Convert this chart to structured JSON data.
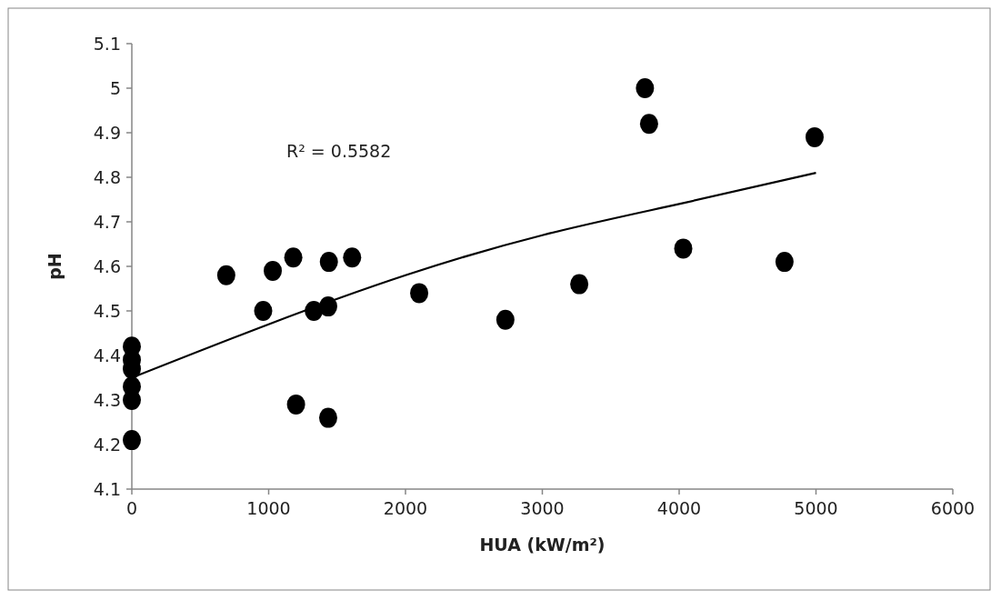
{
  "chart_data": {
    "type": "scatter",
    "xlabel": "HUA (kW/m²)",
    "ylabel": "pH",
    "xlim": [
      0,
      6000
    ],
    "xticks": [
      0,
      1000,
      2000,
      3000,
      4000,
      5000,
      6000
    ],
    "ylim": [
      4.1,
      5.1
    ],
    "yticks": [
      4.1,
      4.2,
      4.3,
      4.4,
      4.5,
      4.6,
      4.7,
      4.8,
      4.9,
      {
        "value": 5,
        "label": "5"
      },
      5.1
    ],
    "grid": false,
    "annotations": [
      "R² = 0.5582"
    ],
    "series": [
      {
        "marker": "circle",
        "color": "#000000",
        "x": [
          0,
          0,
          0,
          0,
          0,
          0,
          690,
          960,
          1030,
          1180,
          1200,
          1330,
          1440,
          1435,
          1435,
          1610,
          2100,
          2730,
          3270,
          3750,
          3780,
          4030,
          4770,
          4990
        ],
        "values": [
          4.42,
          4.39,
          4.37,
          4.33,
          4.3,
          4.21,
          4.58,
          4.5,
          4.59,
          4.62,
          4.29,
          4.5,
          4.61,
          4.51,
          4.26,
          4.62,
          4.54,
          4.48,
          4.56,
          5.0,
          4.92,
          4.64,
          4.61,
          4.89
        ]
      },
      {
        "type": "line",
        "marker": "none",
        "color": "#000000",
        "x": [
          0,
          1000,
          2000,
          3000,
          4000,
          5000
        ],
        "values": [
          4.35,
          4.47,
          4.58,
          4.67,
          4.74,
          4.81
        ]
      }
    ]
  }
}
